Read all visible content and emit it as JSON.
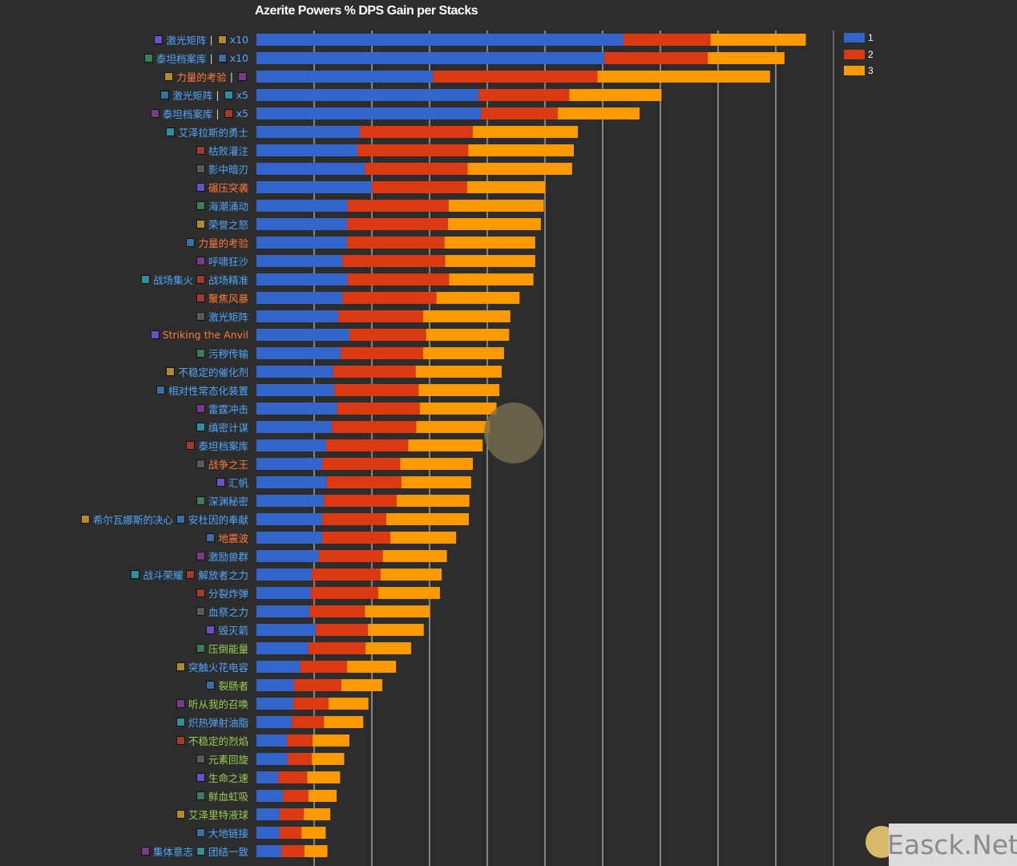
{
  "chart_data": {
    "type": "bar",
    "orientation": "horizontal",
    "stacked": true,
    "title": "Azerite Powers % DPS Gain per Stacks",
    "xlabel": "",
    "ylabel": "",
    "grid": true,
    "xlim": [
      0,
      10
    ],
    "tick_labels_visible": false,
    "legend_position": "top-right",
    "colors": {
      "1": "#3366cc",
      "2": "#dc3912",
      "3": "#ff9900"
    },
    "categories": [
      {
        "parts": [
          {
            "text": "激光矩阵",
            "color": "#4fa8ff"
          },
          {
            "sep": "|"
          },
          {
            "text": "x10",
            "color": "#4fa8ff"
          }
        ]
      },
      {
        "parts": [
          {
            "text": "泰坦档案库",
            "color": "#4fa8ff"
          },
          {
            "sep": "|"
          },
          {
            "text": "x10",
            "color": "#4fa8ff"
          }
        ]
      },
      {
        "parts": [
          {
            "text": "力量的考验",
            "color": "#ff7a33"
          },
          {
            "sep": "|"
          },
          {
            "text": "",
            "color": "#ff7a33"
          }
        ]
      },
      {
        "parts": [
          {
            "text": "激光矩阵",
            "color": "#4fa8ff"
          },
          {
            "sep": "|"
          },
          {
            "text": "x5",
            "color": "#4fa8ff"
          }
        ]
      },
      {
        "parts": [
          {
            "text": "泰坦档案库",
            "color": "#4fa8ff"
          },
          {
            "sep": "|"
          },
          {
            "text": "x5",
            "color": "#4fa8ff"
          }
        ]
      },
      {
        "parts": [
          {
            "text": "艾泽拉斯的勇士",
            "color": "#4fa8ff"
          }
        ]
      },
      {
        "parts": [
          {
            "text": "枯败灌注",
            "color": "#4fa8ff"
          }
        ]
      },
      {
        "parts": [
          {
            "text": "影中暗刃",
            "color": "#4fa8ff"
          }
        ]
      },
      {
        "parts": [
          {
            "text": "碾压突袭",
            "color": "#ff7a33"
          }
        ]
      },
      {
        "parts": [
          {
            "text": "海潮涌动",
            "color": "#4fa8ff"
          }
        ]
      },
      {
        "parts": [
          {
            "text": "荣誉之怒",
            "color": "#4fa8ff"
          }
        ]
      },
      {
        "parts": [
          {
            "text": "力量的考验",
            "color": "#ff7a33"
          }
        ]
      },
      {
        "parts": [
          {
            "text": "呼啸狂沙",
            "color": "#4fa8ff"
          }
        ]
      },
      {
        "parts": [
          {
            "text": "战场集火",
            "color": "#4fa8ff"
          },
          {
            "text": "战场精准",
            "color": "#4fa8ff"
          }
        ]
      },
      {
        "parts": [
          {
            "text": "聚焦风暴",
            "color": "#ff7a33"
          }
        ]
      },
      {
        "parts": [
          {
            "text": "激光矩阵",
            "color": "#4fa8ff"
          }
        ]
      },
      {
        "parts": [
          {
            "text": "Striking the Anvil",
            "color": "#ff7a33"
          }
        ]
      },
      {
        "parts": [
          {
            "text": "污秽传输",
            "color": "#4fa8ff"
          }
        ]
      },
      {
        "parts": [
          {
            "text": "不稳定的催化剂",
            "color": "#4fa8ff"
          }
        ]
      },
      {
        "parts": [
          {
            "text": "相对性常态化装置",
            "color": "#4fa8ff"
          }
        ]
      },
      {
        "parts": [
          {
            "text": "雷霆冲击",
            "color": "#4fa8ff"
          }
        ]
      },
      {
        "parts": [
          {
            "text": "缜密计谋",
            "color": "#4fa8ff"
          }
        ]
      },
      {
        "parts": [
          {
            "text": "泰坦档案库",
            "color": "#4fa8ff"
          }
        ]
      },
      {
        "parts": [
          {
            "text": "战争之王",
            "color": "#ff7a33"
          }
        ]
      },
      {
        "parts": [
          {
            "text": "汇帆",
            "color": "#4fa8ff"
          }
        ]
      },
      {
        "parts": [
          {
            "text": "深渊秘密",
            "color": "#4fa8ff"
          }
        ]
      },
      {
        "parts": [
          {
            "text": "希尔瓦娜斯的决心",
            "color": "#4fa8ff"
          },
          {
            "text": "安杜因的奉献",
            "color": "#4fa8ff"
          }
        ]
      },
      {
        "parts": [
          {
            "text": "地震波",
            "color": "#ff7a33"
          }
        ]
      },
      {
        "parts": [
          {
            "text": "激励兽群",
            "color": "#4fa8ff"
          }
        ]
      },
      {
        "parts": [
          {
            "text": "战斗荣耀",
            "color": "#4fa8ff"
          },
          {
            "text": "解放者之力",
            "color": "#4fa8ff"
          }
        ]
      },
      {
        "parts": [
          {
            "text": "分裂炸弹",
            "color": "#4fa8ff"
          }
        ]
      },
      {
        "parts": [
          {
            "text": "血祭之力",
            "color": "#4fa8ff"
          }
        ]
      },
      {
        "parts": [
          {
            "text": "毁灭箭",
            "color": "#4fa8ff"
          }
        ]
      },
      {
        "parts": [
          {
            "text": "压倒能量",
            "color": "#9ad14b"
          }
        ]
      },
      {
        "parts": [
          {
            "text": "突触火花电容",
            "color": "#4fa8ff"
          }
        ]
      },
      {
        "parts": [
          {
            "text": "裂肠者",
            "color": "#9ad14b"
          }
        ]
      },
      {
        "parts": [
          {
            "text": "听从我的召唤",
            "color": "#9ad14b"
          }
        ]
      },
      {
        "parts": [
          {
            "text": "炽热弹射油脂",
            "color": "#4fa8ff"
          }
        ]
      },
      {
        "parts": [
          {
            "text": "不稳定的烈焰",
            "color": "#9ad14b"
          }
        ]
      },
      {
        "parts": [
          {
            "text": "元素回旋",
            "color": "#9ad14b"
          }
        ]
      },
      {
        "parts": [
          {
            "text": "生命之速",
            "color": "#9ad14b"
          }
        ]
      },
      {
        "parts": [
          {
            "text": "鲜血虹吸",
            "color": "#9ad14b"
          }
        ]
      },
      {
        "parts": [
          {
            "text": "艾泽里特液球",
            "color": "#9ad14b"
          }
        ]
      },
      {
        "parts": [
          {
            "text": "大地链接",
            "color": "#4fa8ff"
          }
        ]
      },
      {
        "parts": [
          {
            "text": "集体意志",
            "color": "#4fa8ff"
          },
          {
            "text": "团结一致",
            "color": "#4fa8ff"
          }
        ]
      }
    ],
    "series": [
      {
        "name": "1",
        "values": [
          6.36,
          6.03,
          3.06,
          3.85,
          3.89,
          1.79,
          1.75,
          1.88,
          2.0,
          1.58,
          1.57,
          1.57,
          1.49,
          1.58,
          1.49,
          1.42,
          1.61,
          1.46,
          1.33,
          1.35,
          1.4,
          1.31,
          1.21,
          1.14,
          1.22,
          1.17,
          1.14,
          1.14,
          1.08,
          0.96,
          0.94,
          0.92,
          1.03,
          0.9,
          0.76,
          0.65,
          0.64,
          0.61,
          0.53,
          0.54,
          0.38,
          0.46,
          0.4,
          0.4,
          0.43
        ]
      },
      {
        "name": "2",
        "values": [
          1.51,
          1.79,
          2.85,
          1.57,
          1.33,
          1.96,
          1.92,
          1.78,
          1.65,
          1.75,
          1.75,
          1.69,
          1.78,
          1.76,
          1.63,
          1.47,
          1.33,
          1.43,
          1.43,
          1.46,
          1.43,
          1.46,
          1.42,
          1.35,
          1.29,
          1.26,
          1.11,
          1.18,
          1.11,
          1.19,
          1.17,
          0.96,
          0.9,
          0.99,
          0.81,
          0.82,
          0.61,
          0.56,
          0.44,
          0.42,
          0.5,
          0.44,
          0.42,
          0.38,
          0.4
        ]
      },
      {
        "name": "3",
        "values": [
          1.65,
          1.33,
          2.99,
          1.6,
          1.42,
          1.82,
          1.83,
          1.81,
          1.36,
          1.65,
          1.61,
          1.57,
          1.56,
          1.46,
          1.44,
          1.51,
          1.44,
          1.4,
          1.49,
          1.4,
          1.33,
          1.28,
          1.29,
          1.26,
          1.21,
          1.26,
          1.43,
          1.14,
          1.11,
          1.06,
          1.07,
          1.13,
          0.97,
          0.79,
          0.85,
          0.71,
          0.69,
          0.68,
          0.64,
          0.56,
          0.57,
          0.49,
          0.46,
          0.42,
          0.4
        ]
      }
    ]
  },
  "legend": {
    "items": [
      "1",
      "2",
      "3"
    ]
  },
  "watermark": {
    "text": "Easck.Net"
  }
}
